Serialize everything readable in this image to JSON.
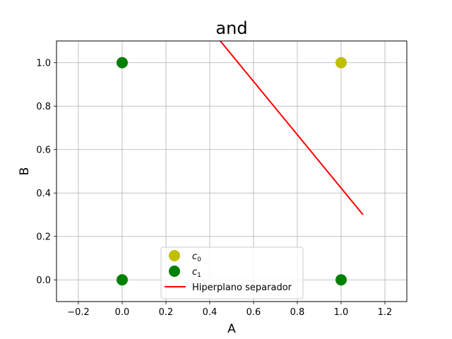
{
  "chart_data": {
    "type": "scatter",
    "title": "and",
    "xlabel": "A",
    "ylabel": "B",
    "xlim": [
      -0.3,
      1.3
    ],
    "ylim": [
      -0.1,
      1.1
    ],
    "xticks": [
      -0.2,
      0.0,
      0.2,
      0.4,
      0.6,
      0.8,
      1.0,
      1.2
    ],
    "xtick_labels": [
      "−0.2",
      "0.0",
      "0.2",
      "0.4",
      "0.6",
      "0.8",
      "1.0",
      "1.2"
    ],
    "yticks": [
      0.0,
      0.2,
      0.4,
      0.6,
      0.8,
      1.0
    ],
    "ytick_labels": [
      "0.0",
      "0.2",
      "0.4",
      "0.6",
      "0.8",
      "1.0"
    ],
    "grid": true,
    "legend_position": "bottom-center",
    "series": [
      {
        "name": "c",
        "subscript": "0",
        "kind": "points",
        "color": "#bfbf00",
        "points": [
          [
            1,
            1
          ]
        ]
      },
      {
        "name": "c",
        "subscript": "1",
        "kind": "points",
        "color": "#008000",
        "points": [
          [
            0,
            1
          ],
          [
            0,
            0
          ],
          [
            1,
            0
          ]
        ]
      },
      {
        "name": "Hiperplano separador",
        "kind": "line",
        "color": "#ff0000",
        "points": [
          [
            0.44,
            1.11
          ],
          [
            1.1,
            0.3
          ]
        ]
      }
    ]
  }
}
